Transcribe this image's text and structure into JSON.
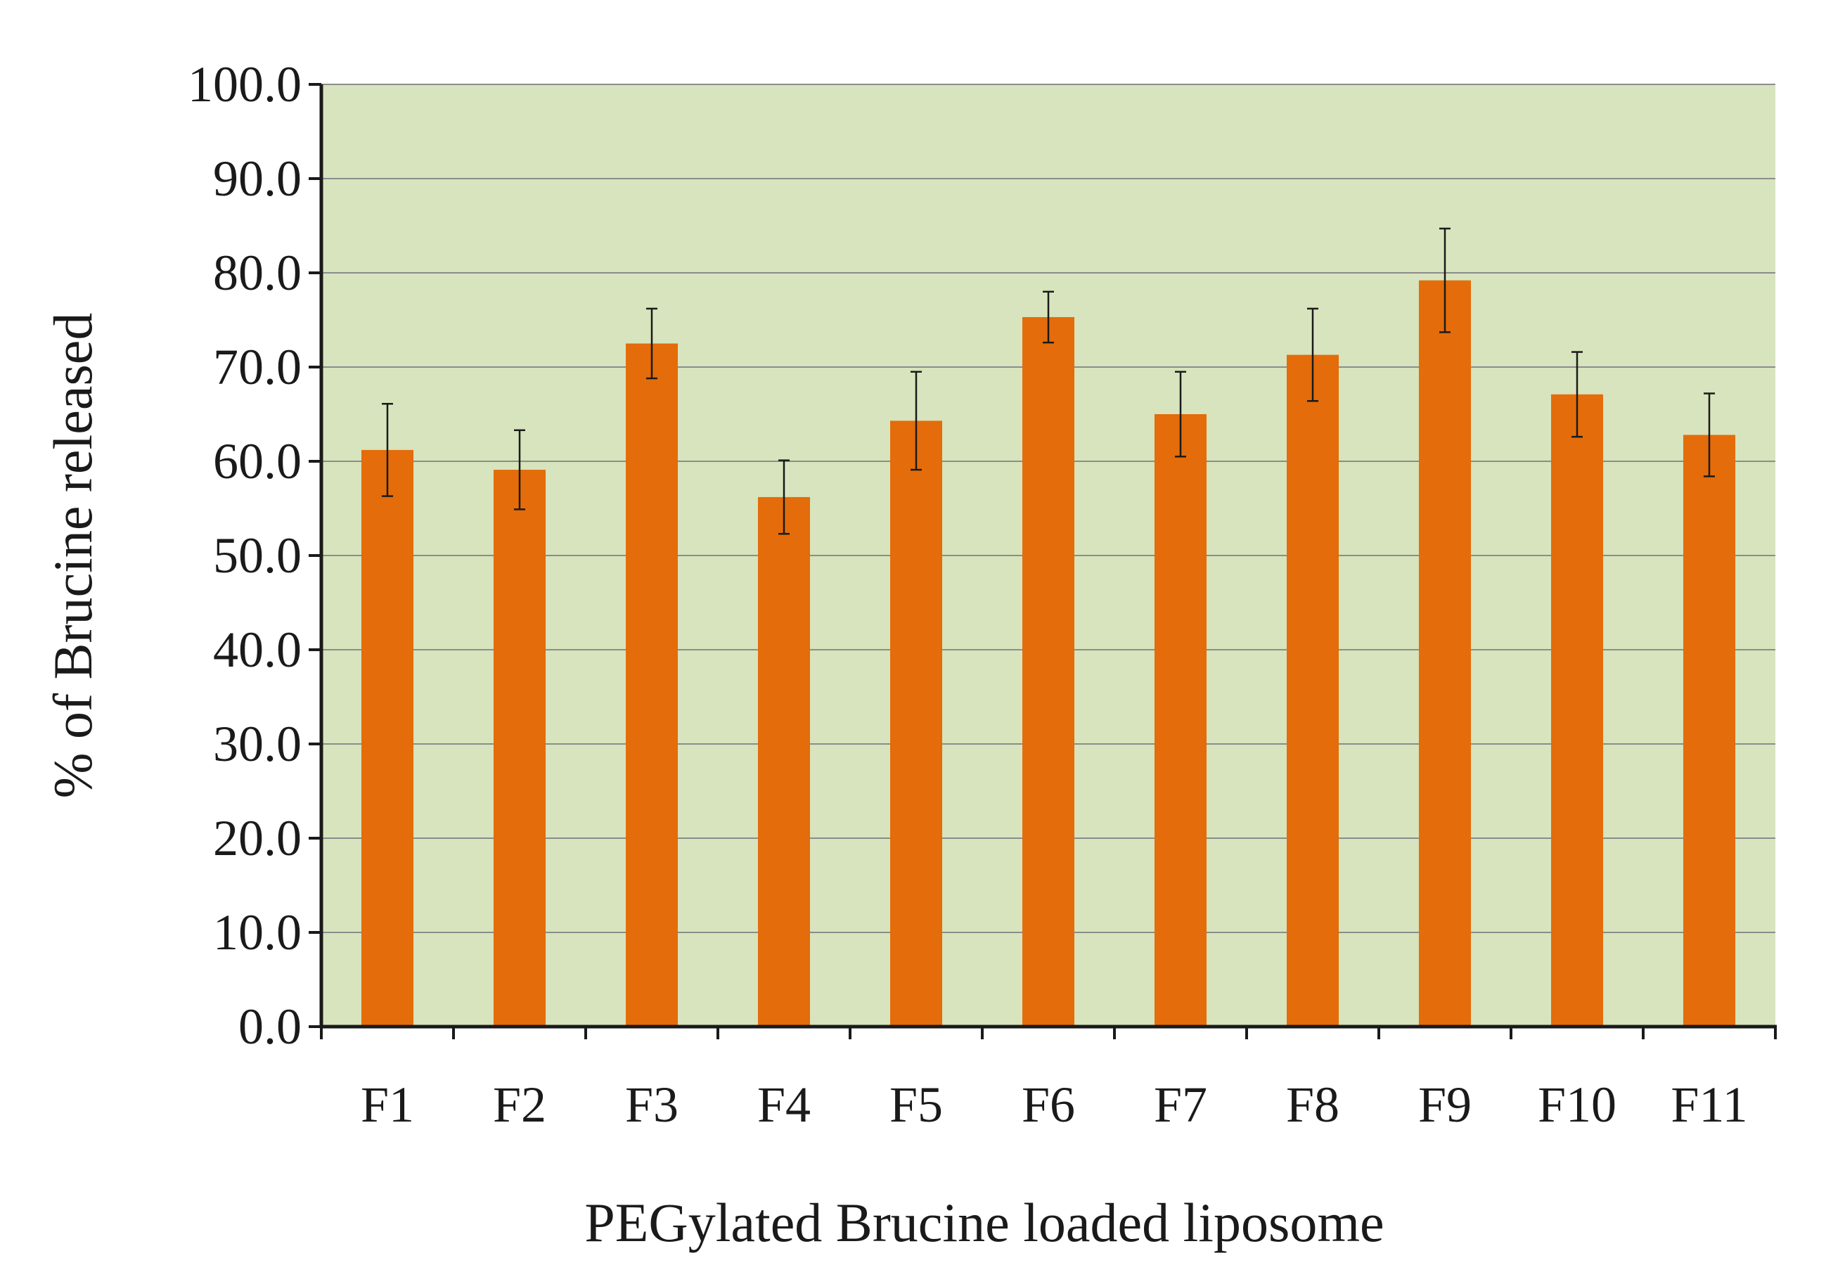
{
  "chart_data": {
    "type": "bar",
    "title": "",
    "xlabel": "PEGylated Brucine loaded liposome",
    "ylabel": "% of Brucine released",
    "categories": [
      "F1",
      "F2",
      "F3",
      "F4",
      "F5",
      "F6",
      "F7",
      "F8",
      "F9",
      "F10",
      "F11"
    ],
    "values": [
      61.2,
      59.1,
      72.5,
      56.2,
      64.3,
      75.3,
      65.0,
      71.3,
      79.2,
      67.1,
      62.8
    ],
    "errors": [
      4.9,
      4.2,
      3.7,
      3.9,
      5.2,
      2.7,
      4.5,
      4.9,
      5.5,
      4.5,
      4.4
    ],
    "ylim": [
      0,
      100
    ],
    "yticks": [
      "0.0",
      "10.0",
      "20.0",
      "30.0",
      "40.0",
      "50.0",
      "60.0",
      "70.0",
      "80.0",
      "90.0",
      "100.0"
    ],
    "grid": true,
    "legend": "none",
    "colors": {
      "bar": "#e46c0a",
      "plot_background": "#d7e4bd",
      "gridline": "#8c8c8c",
      "axis": "#1a1a1a",
      "error_bar": "#1a1a1a"
    }
  }
}
